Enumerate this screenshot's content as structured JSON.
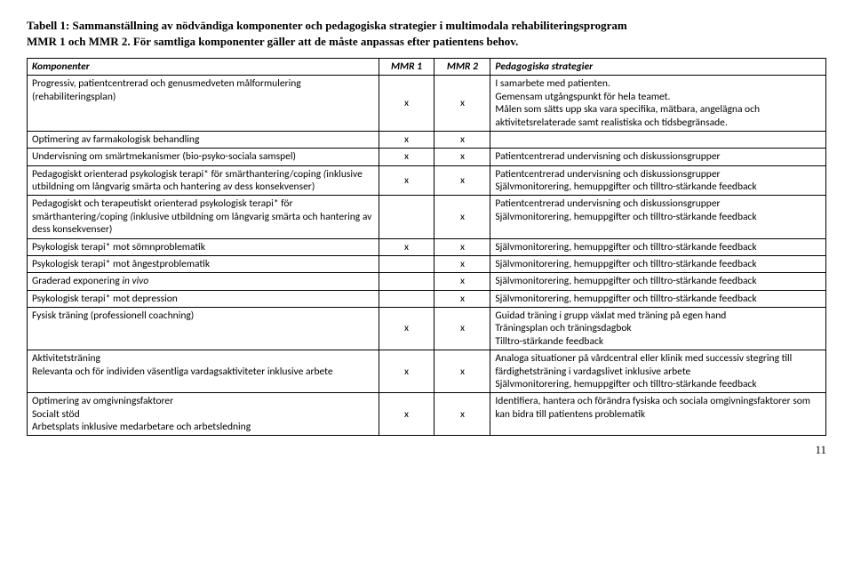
{
  "title_line1": "Tabell 1: Sammanställning av nödvändiga komponenter och pedagogiska strategier i multimodala rehabiliteringsprogram",
  "title_line2": "MMR 1 och MMR 2. För samtliga komponenter gäller att de måste anpassas efter patientens behov.",
  "header": {
    "c1": "Komponenter",
    "c2": "MMR 1",
    "c3": "MMR 2",
    "c4": "Pedagogiska strategier"
  },
  "rows": [
    {
      "c1": "Progressiv, patientcentrerad och genusmedveten målformulering (rehabiliteringsplan)",
      "m1": "x",
      "m2": "x",
      "c4": "I samarbete med patienten.\nGemensam utgångspunkt för hela teamet.\nMålen som sätts upp ska vara specifika, mätbara, angelägna och aktivitetsrelaterade samt realistiska och tidsbegränsade."
    },
    {
      "c1": "Optimering av farmakologisk behandling",
      "m1": "x",
      "m2": "x",
      "c4": ""
    },
    {
      "c1": "Undervisning om smärtmekanismer (bio-psyko-sociala samspel)",
      "m1": "x",
      "m2": "x",
      "c4": "Patientcentrerad undervisning och diskussionsgrupper"
    },
    {
      "c1_html": "Pedagogiskt orienterad psykologisk terapi* för smärthantering/coping <span class=\"em\">(</span>inklusive utbildning om långvarig smärta och hantering av dess konsekvenser)",
      "m1": "x",
      "m2": "x",
      "c4": "Patientcentrerad undervisning och diskussionsgrupper\nSjälvmonitorering, hemuppgifter och tilltro-stärkande feedback"
    },
    {
      "c1_html": "Pedagogiskt och terapeutiskt orienterad psykologisk terapi* för smärthantering/coping <span class=\"em\">(</span>inklusive utbildning om långvarig smärta och hantering av dess konsekvenser)",
      "m1": "",
      "m2": "x",
      "c4": "Patientcentrerad undervisning och diskussionsgrupper\nSjälvmonitorering, hemuppgifter och tilltro-stärkande feedback"
    },
    {
      "c1": "Psykologisk terapi*  mot sömnproblematik",
      "m1": "x",
      "m2": "x",
      "c4": "Självmonitorering, hemuppgifter och tilltro-stärkande feedback"
    },
    {
      "c1": "Psykologisk terapi* mot ångestproblematik",
      "m1": "",
      "m2": "x",
      "c4": "Självmonitorering, hemuppgifter och tilltro-stärkande feedback"
    },
    {
      "c1_html": "Graderad exponering <span class=\"em\">in vivo</span>",
      "m1": "",
      "m2": "x",
      "c4": "Självmonitorering, hemuppgifter och tilltro-stärkande feedback"
    },
    {
      "c1": "Psykologisk terapi* mot depression",
      "m1": "",
      "m2": "x",
      "c4": "Självmonitorering, hemuppgifter och tilltro-stärkande feedback"
    },
    {
      "c1": "Fysisk träning (professionell coachning)",
      "m1": "x",
      "m2": "x",
      "c4": "Guidad träning i grupp växlat med träning på egen hand\nTräningsplan och träningsdagbok\nTilltro-stärkande feedback"
    },
    {
      "c1": "Aktivitetsträning\nRelevanta och för individen väsentliga vardagsaktiviteter inklusive arbete",
      "m1": "x",
      "m2": "x",
      "c4": "Analoga situationer på vårdcentral eller klinik med successiv stegring till färdighetsträning i vardagslivet inklusive arbete\nSjälvmonitorering, hemuppgifter och tilltro-stärkande feedback"
    },
    {
      "c1": "Optimering av omgivningsfaktorer\nSocialt stöd\nArbetsplats inklusive medarbetare och arbetsledning",
      "m1": "x",
      "m2": "x",
      "c4": "Identifiera, hantera och förändra fysiska och sociala omgivningsfaktorer som kan bidra till patientens problematik"
    }
  ],
  "page_number": "11"
}
